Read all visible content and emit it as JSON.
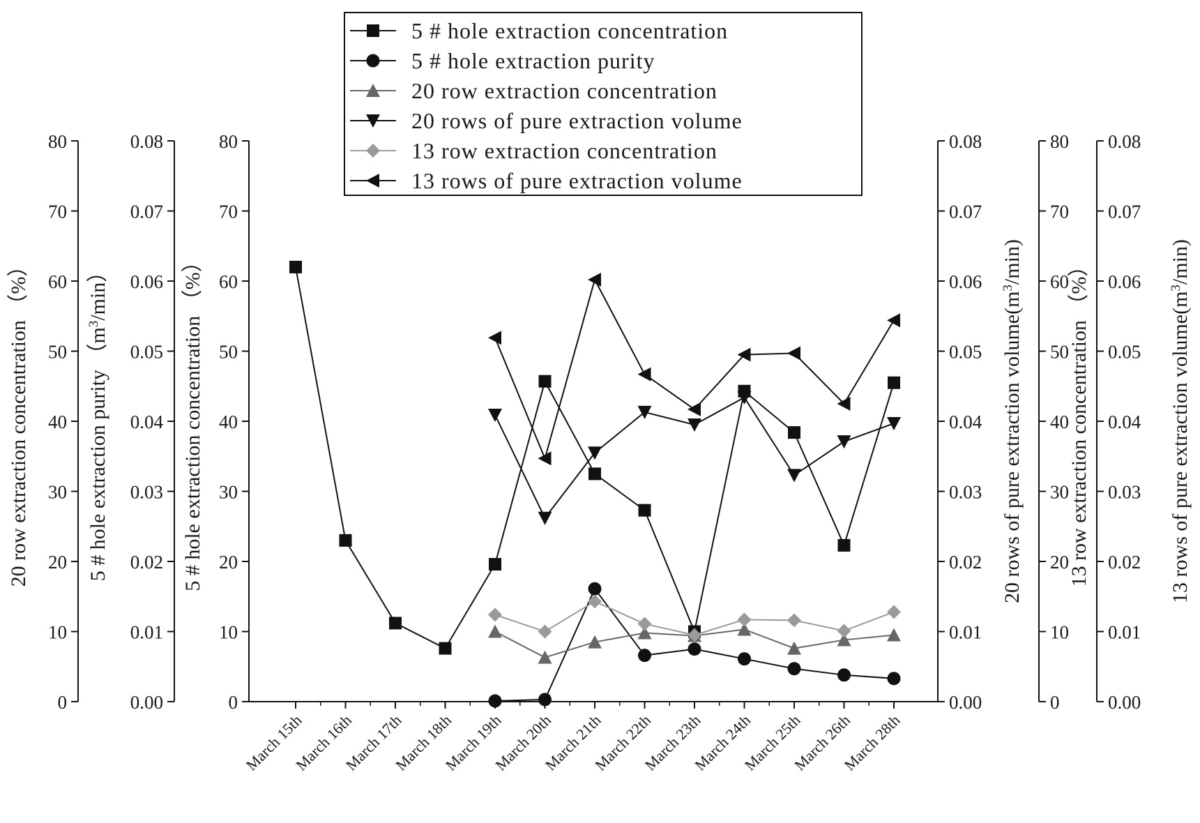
{
  "chart_data": {
    "type": "line",
    "categories": [
      "March 15th",
      "March 16th",
      "March 17th",
      "March 18th",
      "March 19th",
      "March 20th",
      "March 21th",
      "March 22th",
      "March 23th",
      "March 24th",
      "March 25th",
      "March 26th",
      "March 28th"
    ],
    "axes": [
      {
        "id": "a1",
        "side": "left",
        "label": "20 row extraction concentration （%）",
        "ticks": [
          "0",
          "10",
          "20",
          "30",
          "40",
          "50",
          "60",
          "70",
          "80"
        ],
        "range": [
          0,
          80
        ]
      },
      {
        "id": "a2",
        "side": "left",
        "label_pre": "5 # hole extraction purity （m",
        "label_sup": "3",
        "label_post": "/min）",
        "ticks": [
          "0.00",
          "0.01",
          "0.02",
          "0.03",
          "0.04",
          "0.05",
          "0.06",
          "0.07",
          "0.08"
        ],
        "range": [
          0,
          0.08
        ]
      },
      {
        "id": "a3",
        "side": "left",
        "label": "5 # hole extraction concentration （%）",
        "ticks": [
          "0",
          "10",
          "20",
          "30",
          "40",
          "50",
          "60",
          "70",
          "80"
        ],
        "range": [
          0,
          80
        ]
      },
      {
        "id": "a4",
        "side": "right",
        "label_pre": "20 rows of pure extraction volume(m",
        "label_sup": "3",
        "label_post": "/min)",
        "ticks": [
          "0.00",
          "0.01",
          "0.02",
          "0.03",
          "0.04",
          "0.05",
          "0.06",
          "0.07",
          "0.08"
        ],
        "range": [
          0,
          0.08
        ]
      },
      {
        "id": "a5",
        "side": "right",
        "label": "13 row extraction concentration （%）",
        "ticks": [
          "0",
          "10",
          "20",
          "30",
          "40",
          "50",
          "60",
          "70",
          "80"
        ],
        "range": [
          0,
          80
        ]
      },
      {
        "id": "a6",
        "side": "right",
        "label_pre": "13 rows of pure extraction volume(m",
        "label_sup": "3",
        "label_post": "/min)",
        "ticks": [
          "0.00",
          "0.01",
          "0.02",
          "0.03",
          "0.04",
          "0.05",
          "0.06",
          "0.07",
          "0.08"
        ],
        "range": [
          0,
          0.08
        ]
      }
    ],
    "series": [
      {
        "name": "5 # hole extraction concentration",
        "marker": "square",
        "color": "#111111",
        "axis": "a3",
        "values": [
          62,
          23,
          11.2,
          7.6,
          19.6,
          45.7,
          32.5,
          27.3,
          10,
          44.3,
          38.4,
          22.3,
          45.5
        ]
      },
      {
        "name": "5 # hole extraction purity",
        "marker": "circle",
        "color": "#111111",
        "axis": "a2",
        "values": [
          null,
          null,
          null,
          null,
          0.0001,
          0.0003,
          0.0161,
          0.0066,
          0.0075,
          0.0061,
          0.0047,
          0.0038,
          0.0033
        ]
      },
      {
        "name": "20 row extraction concentration",
        "marker": "triangle-up",
        "color": "#666666",
        "axis": "a1",
        "values": [
          null,
          null,
          null,
          null,
          10,
          6.3,
          8.5,
          9.8,
          9.4,
          10.3,
          7.6,
          8.8,
          9.5
        ]
      },
      {
        "name": "20 rows of pure extraction volume",
        "marker": "triangle-down",
        "color": "#111111",
        "axis": "a4",
        "values": [
          null,
          null,
          null,
          null,
          0.0409,
          0.0262,
          0.0355,
          0.0413,
          0.0395,
          0.0434,
          0.0323,
          0.0371,
          0.0397
        ]
      },
      {
        "name": "13 row extraction concentration",
        "marker": "diamond",
        "color": "#9a9a9a",
        "axis": "a5",
        "values": [
          null,
          null,
          null,
          null,
          12.4,
          10,
          14.3,
          11.1,
          9.5,
          11.7,
          11.6,
          10.1,
          12.8
        ]
      },
      {
        "name": "13 rows of pure extraction volume",
        "marker": "triangle-left",
        "color": "#111111",
        "axis": "a6",
        "values": [
          null,
          null,
          null,
          null,
          0.0519,
          0.0347,
          0.0602,
          0.0467,
          0.0417,
          0.0495,
          0.0497,
          0.0425,
          0.0544
        ]
      }
    ]
  }
}
